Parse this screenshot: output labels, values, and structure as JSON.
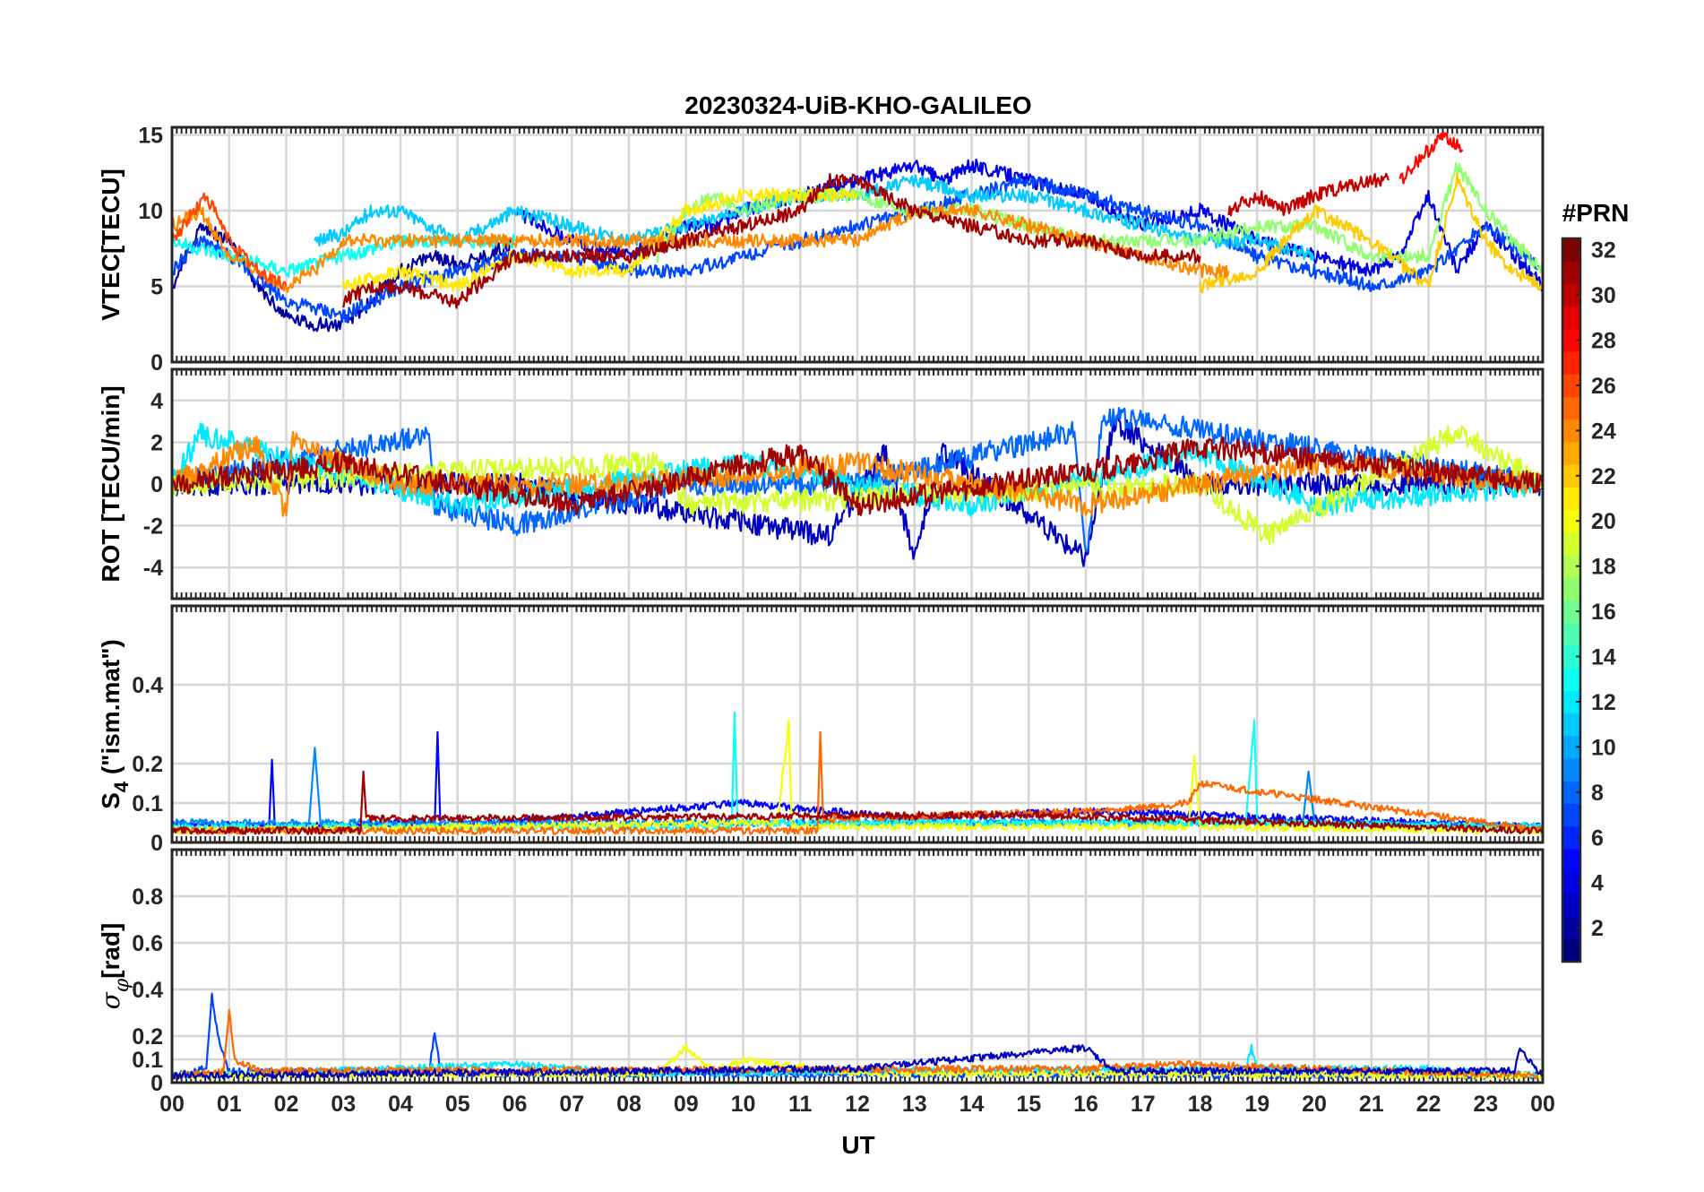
{
  "chart_data": {
    "type": "line",
    "title": "20230324-UiB-KHO-GALILEO",
    "xlabel": "UT",
    "x_ticks": [
      "00",
      "01",
      "02",
      "03",
      "04",
      "05",
      "06",
      "07",
      "08",
      "09",
      "10",
      "11",
      "12",
      "13",
      "14",
      "15",
      "16",
      "17",
      "18",
      "19",
      "20",
      "21",
      "22",
      "23",
      "00"
    ],
    "xlim": [
      0,
      24
    ],
    "grid": true,
    "colorbar": {
      "title": "#PRN",
      "colormap": "jet",
      "range": [
        1,
        32
      ],
      "ticks": [
        "2",
        "4",
        "6",
        "8",
        "10",
        "12",
        "14",
        "16",
        "18",
        "20",
        "22",
        "24",
        "26",
        "28",
        "30",
        "32"
      ]
    },
    "panels": [
      {
        "ylabel": "VTEC[TECU]",
        "ylim": [
          0,
          15.5
        ],
        "yticks": [
          "0",
          "5",
          "10",
          "15"
        ],
        "series": [
          {
            "prn": 2,
            "x": [
              0,
              0.5,
              1,
              1.5,
              2,
              2.5,
              3,
              3.5,
              4,
              4.5,
              5,
              5.5,
              6
            ],
            "y": [
              5,
              9,
              8,
              5,
              3,
              2.5,
              2.5,
              4,
              6,
              7,
              6.5,
              7,
              8
            ]
          },
          {
            "prn": 4,
            "x": [
              6,
              7,
              8,
              9,
              9.5,
              10,
              11,
              12,
              13,
              13.5,
              14,
              15,
              16,
              16.5,
              17,
              18,
              19,
              20,
              21,
              21.5,
              22,
              22.5,
              23,
              23.5,
              24
            ],
            "y": [
              10,
              8,
              7,
              9,
              9,
              10,
              11,
              12,
              13,
              12,
              13,
              12,
              11,
              10,
              9,
              10,
              8,
              7,
              6,
              7,
              11,
              6,
              9,
              7,
              5
            ]
          },
          {
            "prn": 7,
            "x": [
              0,
              0.5,
              1,
              2,
              3,
              4,
              5,
              6,
              7,
              8,
              9,
              10,
              11,
              12,
              13,
              14,
              15,
              16,
              17,
              18,
              19,
              20,
              21,
              22,
              23,
              24
            ],
            "y": [
              6,
              8,
              7,
              4,
              3,
              5,
              6,
              7,
              7,
              6,
              6,
              7,
              8,
              9,
              10,
              11,
              12,
              11,
              10,
              9,
              7,
              6,
              5,
              6,
              9,
              6
            ]
          },
          {
            "prn": 11,
            "x": [
              2.5,
              3,
              3.5,
              4,
              4.5,
              5,
              5.5,
              6,
              7,
              8,
              9,
              10,
              11,
              12,
              13,
              14,
              15,
              16,
              17,
              18,
              19,
              20
            ],
            "y": [
              8,
              8.5,
              10,
              10,
              9,
              8,
              9,
              10,
              9,
              8,
              9,
              10,
              11,
              11,
              12,
              11,
              11,
              10,
              9,
              8,
              8,
              7
            ]
          },
          {
            "prn": 13,
            "x": [
              0,
              1,
              2,
              3,
              4,
              5,
              6
            ],
            "y": [
              8,
              7,
              6,
              7,
              8,
              8,
              8
            ]
          },
          {
            "prn": 17,
            "x": [
              8.5,
              9,
              9.5,
              10,
              11,
              12,
              13,
              14,
              15,
              16,
              17,
              18,
              19,
              20,
              21,
              22,
              22.5,
              23,
              24
            ],
            "y": [
              7,
              10,
              11,
              10,
              11,
              11,
              10,
              10,
              9,
              8,
              8,
              8,
              9,
              9,
              7,
              7,
              13,
              10,
              6
            ]
          },
          {
            "prn": 21,
            "x": [
              3,
              4,
              5,
              6,
              7,
              8,
              9,
              10,
              11,
              12
            ],
            "y": [
              5,
              6,
              5,
              7,
              6,
              6,
              10,
              11,
              11,
              11
            ]
          },
          {
            "prn": 22,
            "x": [
              18,
              19,
              20,
              21,
              22,
              22.5,
              23,
              23.5,
              24
            ],
            "y": [
              5,
              6,
              10,
              8,
              5,
              12,
              8,
              6,
              5
            ]
          },
          {
            "prn": 24,
            "x": [
              0,
              0.5,
              1,
              1.5,
              2,
              2.5,
              3,
              12,
              13,
              14,
              15,
              16,
              17,
              18,
              18.5
            ],
            "y": [
              9,
              10,
              7,
              6,
              5,
              6,
              8,
              8,
              10,
              10,
              9,
              8,
              7,
              6,
              6
            ]
          },
          {
            "prn": 26,
            "x": [
              0,
              0.6,
              1,
              1.5,
              2
            ],
            "y": [
              8,
              11,
              8,
              6,
              5
            ]
          },
          {
            "prn": 28,
            "x": [
              21.5,
              22,
              22.3,
              22.6
            ],
            "y": [
              12,
              14,
              15,
              14
            ]
          },
          {
            "prn": 30,
            "x": [
              18.5,
              19,
              19.5,
              20,
              21,
              21.3
            ],
            "y": [
              10,
              11,
              10,
              11,
              12,
              12
            ]
          },
          {
            "prn": 31,
            "x": [
              3,
              3.5,
              4,
              5,
              6,
              7,
              8,
              9,
              10,
              11,
              11.5,
              12,
              13,
              14,
              15,
              16,
              17,
              18
            ],
            "y": [
              4,
              5,
              5,
              4,
              7,
              7,
              7,
              8,
              9,
              10,
              12,
              12,
              10,
              9,
              8,
              8,
              7,
              7
            ]
          }
        ]
      },
      {
        "ylabel": "ROT [TECU/min]",
        "ylim": [
          -5.5,
          5.5
        ],
        "yticks": [
          "-4",
          "-2",
          "0",
          "2",
          "4"
        ],
        "series": [
          {
            "prn": 3,
            "x": [
              0,
              6,
              11.5,
              12.5,
              13,
              13.5,
              16,
              16.5,
              18,
              24
            ],
            "y": [
              0,
              0,
              -2.5,
              1.5,
              -3.5,
              1.5,
              -3.5,
              3,
              0,
              0
            ]
          },
          {
            "prn": 8,
            "x": [
              0,
              4.5,
              4.6,
              6,
              9,
              12,
              15.8,
              16,
              16.3,
              24
            ],
            "y": [
              0,
              2.4,
              -1,
              -2,
              0,
              0,
              2.5,
              -3.5,
              3.3,
              0
            ]
          },
          {
            "prn": 12,
            "x": [
              0,
              0.5,
              5,
              10,
              14,
              18,
              20,
              24
            ],
            "y": [
              0,
              2.4,
              -1,
              1,
              -1,
              1.5,
              -1,
              0
            ]
          },
          {
            "prn": 19,
            "x": [
              0,
              8.5,
              9,
              18,
              19.2,
              22.5,
              24
            ],
            "y": [
              0,
              1,
              -1,
              0,
              -2.5,
              2.5,
              0
            ]
          },
          {
            "prn": 24,
            "x": [
              0,
              1.5,
              2,
              2.1,
              4,
              8,
              12,
              16,
              20,
              24
            ],
            "y": [
              0,
              2,
              -1.5,
              2,
              0,
              0,
              1,
              -1,
              1,
              0
            ]
          },
          {
            "prn": 31,
            "x": [
              0,
              3,
              7,
              11,
              12,
              17,
              18,
              24
            ],
            "y": [
              0,
              1,
              -1,
              1.5,
              -1,
              1,
              1.8,
              0
            ]
          }
        ]
      },
      {
        "ylabel": "S4 (\"ism.mat\")",
        "ylabel_main": "S",
        "ylabel_sub": "4",
        "ylabel_rest": "(\"ism.mat\")",
        "ylim": [
          0,
          0.6
        ],
        "yticks": [
          "0",
          "0.1",
          "0.2",
          "0.4"
        ],
        "ytick_values": [
          0,
          0.1,
          0.2,
          0.4
        ],
        "series": [
          {
            "prn": 5,
            "x": [
              0,
              1.7,
              1.75,
              1.8,
              4.6,
              4.65,
              4.7,
              10,
              13,
              16,
              24
            ],
            "y": [
              0.05,
              0.04,
              0.21,
              0.04,
              0.05,
              0.28,
              0.04,
              0.1,
              0.06,
              0.08,
              0.04
            ]
          },
          {
            "prn": 9,
            "x": [
              0,
              2.4,
              2.5,
              2.6,
              19.8,
              19.9,
              20,
              24
            ],
            "y": [
              0.05,
              0.05,
              0.24,
              0.05,
              0.05,
              0.18,
              0.05,
              0.04
            ]
          },
          {
            "prn": 13,
            "x": [
              0,
              9.8,
              9.85,
              9.9,
              18.8,
              18.95,
              19,
              24
            ],
            "y": [
              0.04,
              0.04,
              0.33,
              0.05,
              0.05,
              0.31,
              0.05,
              0.04
            ]
          },
          {
            "prn": 20,
            "x": [
              0,
              10.6,
              10.8,
              10.85,
              17.8,
              17.9,
              18,
              24
            ],
            "y": [
              0.03,
              0.05,
              0.31,
              0.04,
              0.04,
              0.22,
              0.04,
              0.03
            ]
          },
          {
            "prn": 25,
            "x": [
              0,
              11.3,
              11.35,
              11.4,
              16.3,
              17.8,
              18,
              24
            ],
            "y": [
              0.03,
              0.03,
              0.28,
              0.06,
              0.08,
              0.1,
              0.15,
              0.03
            ]
          },
          {
            "prn": 31,
            "x": [
              0,
              3.3,
              3.35,
              3.4,
              14.5,
              15,
              24
            ],
            "y": [
              0.03,
              0.03,
              0.18,
              0.06,
              0.07,
              0.07,
              0.03
            ]
          }
        ]
      },
      {
        "ylabel": "σφ[rad]",
        "ylabel_main": "σ",
        "ylabel_sub": "φ",
        "ylabel_rest": "[rad]",
        "ylim": [
          0,
          1
        ],
        "yticks": [
          "0",
          "0.1",
          "0.2",
          "0.4",
          "0.6",
          "0.8"
        ],
        "ytick_values": [
          0,
          0.1,
          0.2,
          0.4,
          0.6,
          0.8
        ],
        "series": [
          {
            "prn": 7,
            "x": [
              0,
              0.6,
              0.7,
              0.8,
              1,
              4.5,
              4.6,
              4.7,
              24
            ],
            "y": [
              0.03,
              0.06,
              0.38,
              0.2,
              0.05,
              0.04,
              0.22,
              0.04,
              0.03
            ]
          },
          {
            "prn": 12,
            "x": [
              0,
              4,
              6,
              8,
              18.8,
              18.9,
              19,
              22,
              24
            ],
            "y": [
              0.03,
              0.06,
              0.08,
              0.04,
              0.06,
              0.15,
              0.06,
              0.06,
              0.03
            ]
          },
          {
            "prn": 20,
            "x": [
              0,
              8.5,
              9,
              9.5,
              10,
              12,
              24
            ],
            "y": [
              0.03,
              0.04,
              0.15,
              0.05,
              0.1,
              0.04,
              0.03
            ]
          },
          {
            "prn": 25,
            "x": [
              0,
              0.9,
              1,
              1.1,
              1.5,
              16,
              17.5,
              24
            ],
            "y": [
              0.03,
              0.05,
              0.3,
              0.1,
              0.05,
              0.06,
              0.08,
              0.03
            ]
          },
          {
            "prn": 3,
            "x": [
              0,
              12,
              16,
              16.5,
              23.5,
              23.6,
              24
            ],
            "y": [
              0.03,
              0.06,
              0.15,
              0.05,
              0.05,
              0.14,
              0.03
            ]
          }
        ]
      }
    ]
  }
}
